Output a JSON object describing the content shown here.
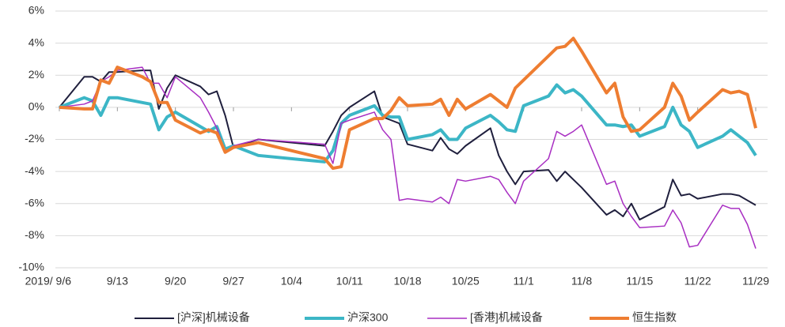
{
  "chart_data": {
    "type": "line",
    "x": [
      0,
      3,
      4,
      5,
      6,
      7,
      10,
      11,
      12,
      13,
      14,
      17,
      18,
      19,
      20,
      21,
      24,
      32,
      33,
      34,
      35,
      38,
      39,
      40,
      41,
      42,
      45,
      46,
      47,
      48,
      49,
      52,
      53,
      54,
      55,
      56,
      59,
      60,
      61,
      62,
      63,
      66,
      67,
      68,
      69,
      70,
      73,
      74,
      75,
      76,
      77,
      80,
      81,
      82,
      83,
      84
    ],
    "xlim": [
      0,
      84
    ],
    "xticks": [
      {
        "value": 0,
        "label": "2019/ 9/6"
      },
      {
        "value": 7,
        "label": "9/13"
      },
      {
        "value": 14,
        "label": "9/20"
      },
      {
        "value": 21,
        "label": "9/27"
      },
      {
        "value": 28,
        "label": "10/4"
      },
      {
        "value": 35,
        "label": "10/11"
      },
      {
        "value": 42,
        "label": "10/18"
      },
      {
        "value": 49,
        "label": "10/25"
      },
      {
        "value": 56,
        "label": "11/1"
      },
      {
        "value": 63,
        "label": "11/8"
      },
      {
        "value": 70,
        "label": "11/15"
      },
      {
        "value": 77,
        "label": "11/22"
      },
      {
        "value": 84,
        "label": "11/29"
      }
    ],
    "ylim": [
      -10,
      6
    ],
    "yticks": [
      {
        "value": 6,
        "label": "6%"
      },
      {
        "value": 4,
        "label": "4%"
      },
      {
        "value": 2,
        "label": "2%"
      },
      {
        "value": 0,
        "label": "0%"
      },
      {
        "value": -2,
        "label": "-2%"
      },
      {
        "value": -4,
        "label": "-4%"
      },
      {
        "value": -6,
        "label": "-6%"
      },
      {
        "value": -8,
        "label": "-8%"
      },
      {
        "value": -10,
        "label": "-10%"
      }
    ],
    "grid": true,
    "legend": "bottom",
    "series": [
      {
        "name": "[沪深]机械设备",
        "color": "#1f1f3d",
        "line_width": 2,
        "values": [
          0,
          1.9,
          1.9,
          1.6,
          2.2,
          2.2,
          2.3,
          2.3,
          -0.1,
          1.2,
          2.0,
          1.3,
          0.8,
          1.0,
          -0.5,
          -2.5,
          -2.0,
          -2.4,
          -1.5,
          -0.5,
          0,
          1.0,
          -0.6,
          -0.8,
          -1.0,
          -2.3,
          -2.7,
          -1.9,
          -2.6,
          -2.9,
          -2.4,
          -1.3,
          -3.0,
          -4.0,
          -4.8,
          -4.0,
          -3.9,
          -4.6,
          -4.0,
          -4.5,
          -5.0,
          -6.7,
          -6.4,
          -6.8,
          -6.0,
          -7.0,
          -6.2,
          -4.5,
          -5.5,
          -5.4,
          -5.7,
          -5.4,
          -5.4,
          -5.5,
          -5.8,
          -6.1
        ]
      },
      {
        "name": "沪深300",
        "color": "#3cb6c6",
        "line_width": 4,
        "values": [
          0,
          0.6,
          0.4,
          -0.5,
          0.6,
          0.6,
          0.3,
          0.2,
          -1.4,
          -0.6,
          -0.3,
          -1.2,
          -1.5,
          -1.2,
          -2.6,
          -2.4,
          -3.0,
          -3.4,
          -2.7,
          -1.0,
          -0.5,
          0.1,
          -0.5,
          -0.6,
          -0.6,
          -2.0,
          -1.7,
          -1.4,
          -2.0,
          -2.0,
          -1.3,
          -0.5,
          -0.9,
          -1.4,
          -1.5,
          0.1,
          0.7,
          1.4,
          0.9,
          1.1,
          0.7,
          -1.1,
          -1.1,
          -1.2,
          -1.1,
          -1.8,
          -1.2,
          0,
          -1.1,
          -1.5,
          -2.5,
          -1.8,
          -1.4,
          -1.8,
          -2.2,
          -3.0
        ]
      },
      {
        "name": "[香港]机械设备",
        "color": "#a82ec2",
        "line_width": 1.5,
        "values": [
          0,
          0.2,
          0.4,
          1.6,
          1.9,
          2.3,
          2.5,
          1.5,
          1.5,
          0.6,
          1.9,
          0.6,
          -0.3,
          -1.3,
          -2.8,
          -2.4,
          -2.0,
          -2.3,
          -3.5,
          -1.0,
          -0.8,
          -0.3,
          -1.4,
          -2.0,
          -5.8,
          -5.7,
          -5.9,
          -5.6,
          -6.0,
          -4.5,
          -4.6,
          -4.3,
          -4.5,
          -5.3,
          -6.0,
          -4.6,
          -3.2,
          -1.5,
          -1.8,
          -1.5,
          -1.1,
          -4.8,
          -4.6,
          -6.0,
          -6.8,
          -7.5,
          -7.4,
          -6.4,
          -7.2,
          -8.7,
          -8.6,
          -6.1,
          -6.3,
          -6.3,
          -7.3,
          -8.8
        ]
      },
      {
        "name": "恒生指数",
        "color": "#ee7d31",
        "line_width": 4,
        "values": [
          0,
          -0.1,
          -0.1,
          1.7,
          1.5,
          2.5,
          1.9,
          1.6,
          0.3,
          0.3,
          -0.8,
          -1.6,
          -1.4,
          -1.6,
          -2.8,
          -2.5,
          -2.2,
          -3.2,
          -3.8,
          -3.7,
          -1.4,
          -0.7,
          -0.7,
          -0.2,
          0.6,
          0.1,
          0.2,
          0.5,
          -0.5,
          0.5,
          -0.1,
          0.8,
          0.4,
          0,
          1.2,
          1.7,
          3.2,
          3.7,
          3.8,
          4.3,
          3.5,
          0.9,
          1.5,
          -0.6,
          -1.5,
          -1.4,
          0,
          1.5,
          0.7,
          -0.8,
          -0.3,
          1.1,
          0.9,
          1.0,
          0.8,
          -1.3
        ]
      }
    ]
  }
}
